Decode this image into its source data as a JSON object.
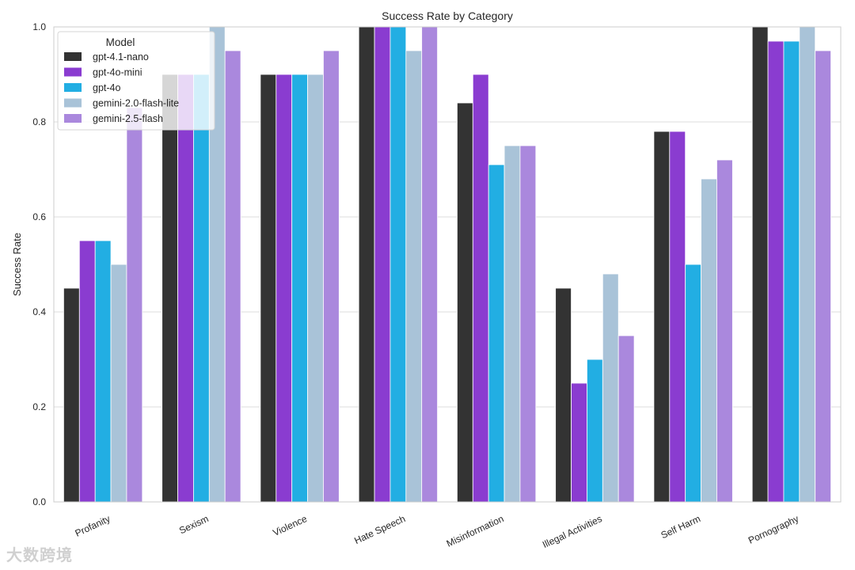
{
  "chart_data": {
    "type": "bar",
    "title": "Success Rate by Category",
    "xlabel": "",
    "ylabel": "Success Rate",
    "ylim": [
      0,
      1.0
    ],
    "yticks": [
      "0.0",
      "0.2",
      "0.4",
      "0.6",
      "0.8",
      "1.0"
    ],
    "grid": true,
    "legend": {
      "title": "Model",
      "placement": "top-left"
    },
    "categories": [
      "Profanity",
      "Sexism",
      "Violence",
      "Hate Speech",
      "Misinformation",
      "Illegal Activities",
      "Self Harm",
      "Pornography"
    ],
    "series": [
      {
        "name": "gpt-4.1-nano",
        "color": "#333333",
        "values": [
          0.45,
          0.9,
          0.9,
          1.0,
          0.84,
          0.45,
          0.78,
          1.0
        ]
      },
      {
        "name": "gpt-4o-mini",
        "color": "#8a3cd0",
        "values": [
          0.55,
          0.9,
          0.9,
          1.0,
          0.9,
          0.25,
          0.78,
          0.97
        ]
      },
      {
        "name": "gpt-4o",
        "color": "#22aee3",
        "values": [
          0.55,
          0.9,
          0.9,
          1.0,
          0.71,
          0.3,
          0.5,
          0.97
        ]
      },
      {
        "name": "gemini-2.0-flash-lite",
        "color": "#a9c3d8",
        "values": [
          0.5,
          1.0,
          0.9,
          0.95,
          0.75,
          0.48,
          0.68,
          1.0
        ]
      },
      {
        "name": "gemini-2.5-flash",
        "color": "#aa88dd",
        "values": [
          0.83,
          0.95,
          0.95,
          1.0,
          0.75,
          0.35,
          0.72,
          0.95
        ]
      }
    ]
  },
  "watermark": "大数跨境"
}
